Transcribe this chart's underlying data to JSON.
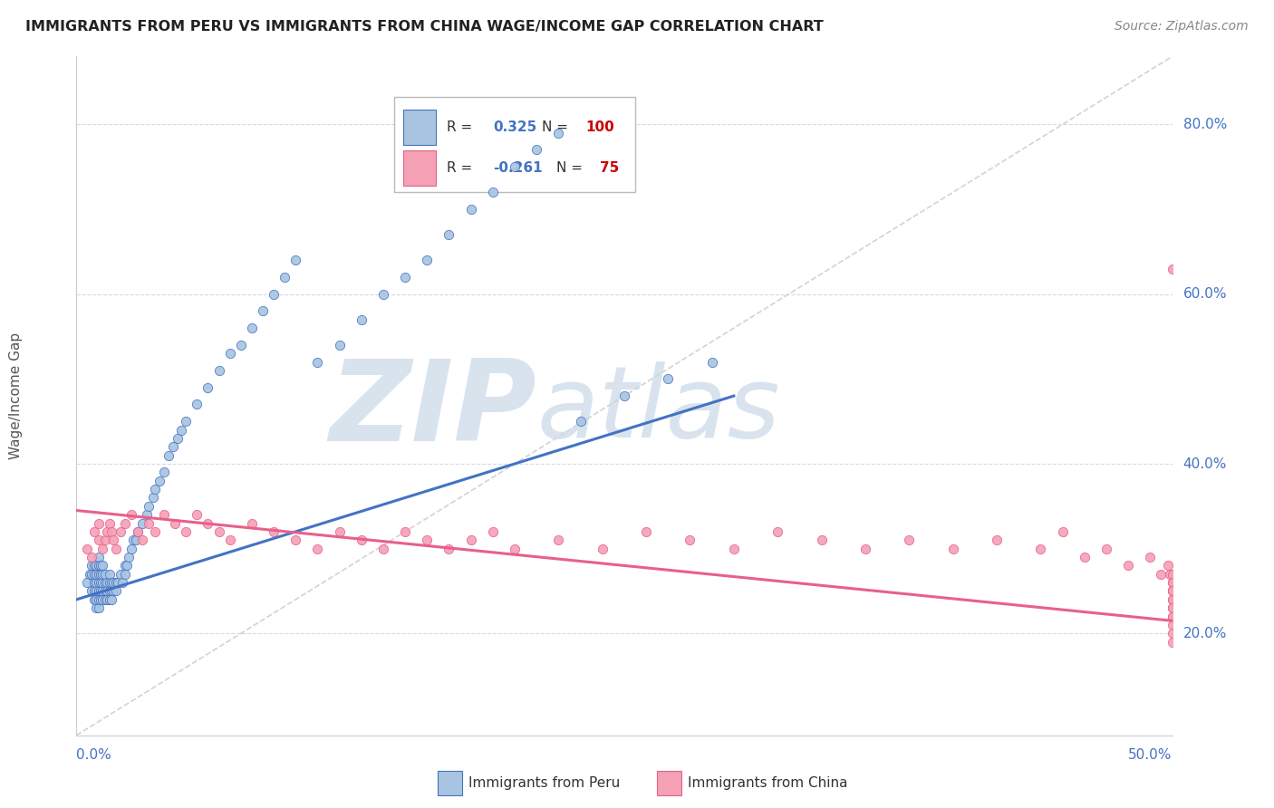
{
  "title": "IMMIGRANTS FROM PERU VS IMMIGRANTS FROM CHINA WAGE/INCOME GAP CORRELATION CHART",
  "source": "Source: ZipAtlas.com",
  "ylabel": "Wage/Income Gap",
  "xlim": [
    0.0,
    0.5
  ],
  "ylim": [
    0.08,
    0.88
  ],
  "legend_r_peru": "0.325",
  "legend_n_peru": "100",
  "legend_r_china": "-0.261",
  "legend_n_china": "75",
  "peru_color": "#a8c4e0",
  "china_color": "#f4a0b5",
  "peru_line_color": "#4472c4",
  "china_line_color": "#e8608a",
  "ref_line_color": "#c8c8c8",
  "grid_color": "#d8d8e8",
  "peru_x": [
    0.005,
    0.006,
    0.007,
    0.007,
    0.007,
    0.008,
    0.008,
    0.008,
    0.008,
    0.008,
    0.009,
    0.009,
    0.009,
    0.009,
    0.009,
    0.009,
    0.01,
    0.01,
    0.01,
    0.01,
    0.01,
    0.01,
    0.01,
    0.011,
    0.011,
    0.011,
    0.011,
    0.011,
    0.012,
    0.012,
    0.012,
    0.012,
    0.012,
    0.013,
    0.013,
    0.013,
    0.013,
    0.014,
    0.014,
    0.014,
    0.015,
    0.015,
    0.015,
    0.015,
    0.016,
    0.016,
    0.016,
    0.017,
    0.017,
    0.018,
    0.018,
    0.019,
    0.02,
    0.021,
    0.022,
    0.022,
    0.023,
    0.024,
    0.025,
    0.026,
    0.027,
    0.028,
    0.03,
    0.032,
    0.033,
    0.035,
    0.036,
    0.038,
    0.04,
    0.042,
    0.044,
    0.046,
    0.048,
    0.05,
    0.055,
    0.06,
    0.065,
    0.07,
    0.075,
    0.08,
    0.085,
    0.09,
    0.095,
    0.1,
    0.11,
    0.12,
    0.13,
    0.14,
    0.15,
    0.16,
    0.17,
    0.18,
    0.19,
    0.2,
    0.21,
    0.22,
    0.23,
    0.25,
    0.27,
    0.29
  ],
  "peru_y": [
    0.26,
    0.27,
    0.25,
    0.27,
    0.28,
    0.24,
    0.25,
    0.26,
    0.27,
    0.28,
    0.23,
    0.24,
    0.25,
    0.26,
    0.27,
    0.28,
    0.23,
    0.24,
    0.25,
    0.26,
    0.27,
    0.28,
    0.29,
    0.24,
    0.25,
    0.26,
    0.27,
    0.28,
    0.24,
    0.25,
    0.26,
    0.27,
    0.28,
    0.24,
    0.25,
    0.26,
    0.27,
    0.24,
    0.25,
    0.26,
    0.24,
    0.25,
    0.26,
    0.27,
    0.24,
    0.25,
    0.26,
    0.25,
    0.26,
    0.25,
    0.26,
    0.26,
    0.27,
    0.26,
    0.27,
    0.28,
    0.28,
    0.29,
    0.3,
    0.31,
    0.31,
    0.32,
    0.33,
    0.34,
    0.35,
    0.36,
    0.37,
    0.38,
    0.39,
    0.41,
    0.42,
    0.43,
    0.44,
    0.45,
    0.47,
    0.49,
    0.51,
    0.53,
    0.54,
    0.56,
    0.58,
    0.6,
    0.62,
    0.64,
    0.52,
    0.54,
    0.57,
    0.6,
    0.62,
    0.64,
    0.67,
    0.7,
    0.72,
    0.75,
    0.77,
    0.79,
    0.45,
    0.48,
    0.5,
    0.52
  ],
  "china_x": [
    0.005,
    0.007,
    0.008,
    0.01,
    0.01,
    0.012,
    0.013,
    0.014,
    0.015,
    0.016,
    0.017,
    0.018,
    0.02,
    0.022,
    0.025,
    0.028,
    0.03,
    0.033,
    0.036,
    0.04,
    0.045,
    0.05,
    0.055,
    0.06,
    0.065,
    0.07,
    0.08,
    0.09,
    0.1,
    0.11,
    0.12,
    0.13,
    0.14,
    0.15,
    0.16,
    0.17,
    0.18,
    0.19,
    0.2,
    0.22,
    0.24,
    0.26,
    0.28,
    0.3,
    0.32,
    0.34,
    0.36,
    0.38,
    0.4,
    0.42,
    0.44,
    0.45,
    0.46,
    0.47,
    0.48,
    0.49,
    0.495,
    0.498,
    0.499,
    0.5,
    0.5,
    0.5,
    0.5,
    0.5,
    0.5,
    0.5,
    0.5,
    0.5,
    0.5,
    0.5,
    0.5,
    0.5,
    0.5,
    0.5,
    0.5
  ],
  "china_y": [
    0.3,
    0.29,
    0.32,
    0.31,
    0.33,
    0.3,
    0.31,
    0.32,
    0.33,
    0.32,
    0.31,
    0.3,
    0.32,
    0.33,
    0.34,
    0.32,
    0.31,
    0.33,
    0.32,
    0.34,
    0.33,
    0.32,
    0.34,
    0.33,
    0.32,
    0.31,
    0.33,
    0.32,
    0.31,
    0.3,
    0.32,
    0.31,
    0.3,
    0.32,
    0.31,
    0.3,
    0.31,
    0.32,
    0.3,
    0.31,
    0.3,
    0.32,
    0.31,
    0.3,
    0.32,
    0.31,
    0.3,
    0.31,
    0.3,
    0.31,
    0.3,
    0.32,
    0.29,
    0.3,
    0.28,
    0.29,
    0.27,
    0.28,
    0.27,
    0.26,
    0.25,
    0.63,
    0.27,
    0.25,
    0.26,
    0.24,
    0.25,
    0.23,
    0.22,
    0.24,
    0.23,
    0.22,
    0.21,
    0.2,
    0.19
  ]
}
